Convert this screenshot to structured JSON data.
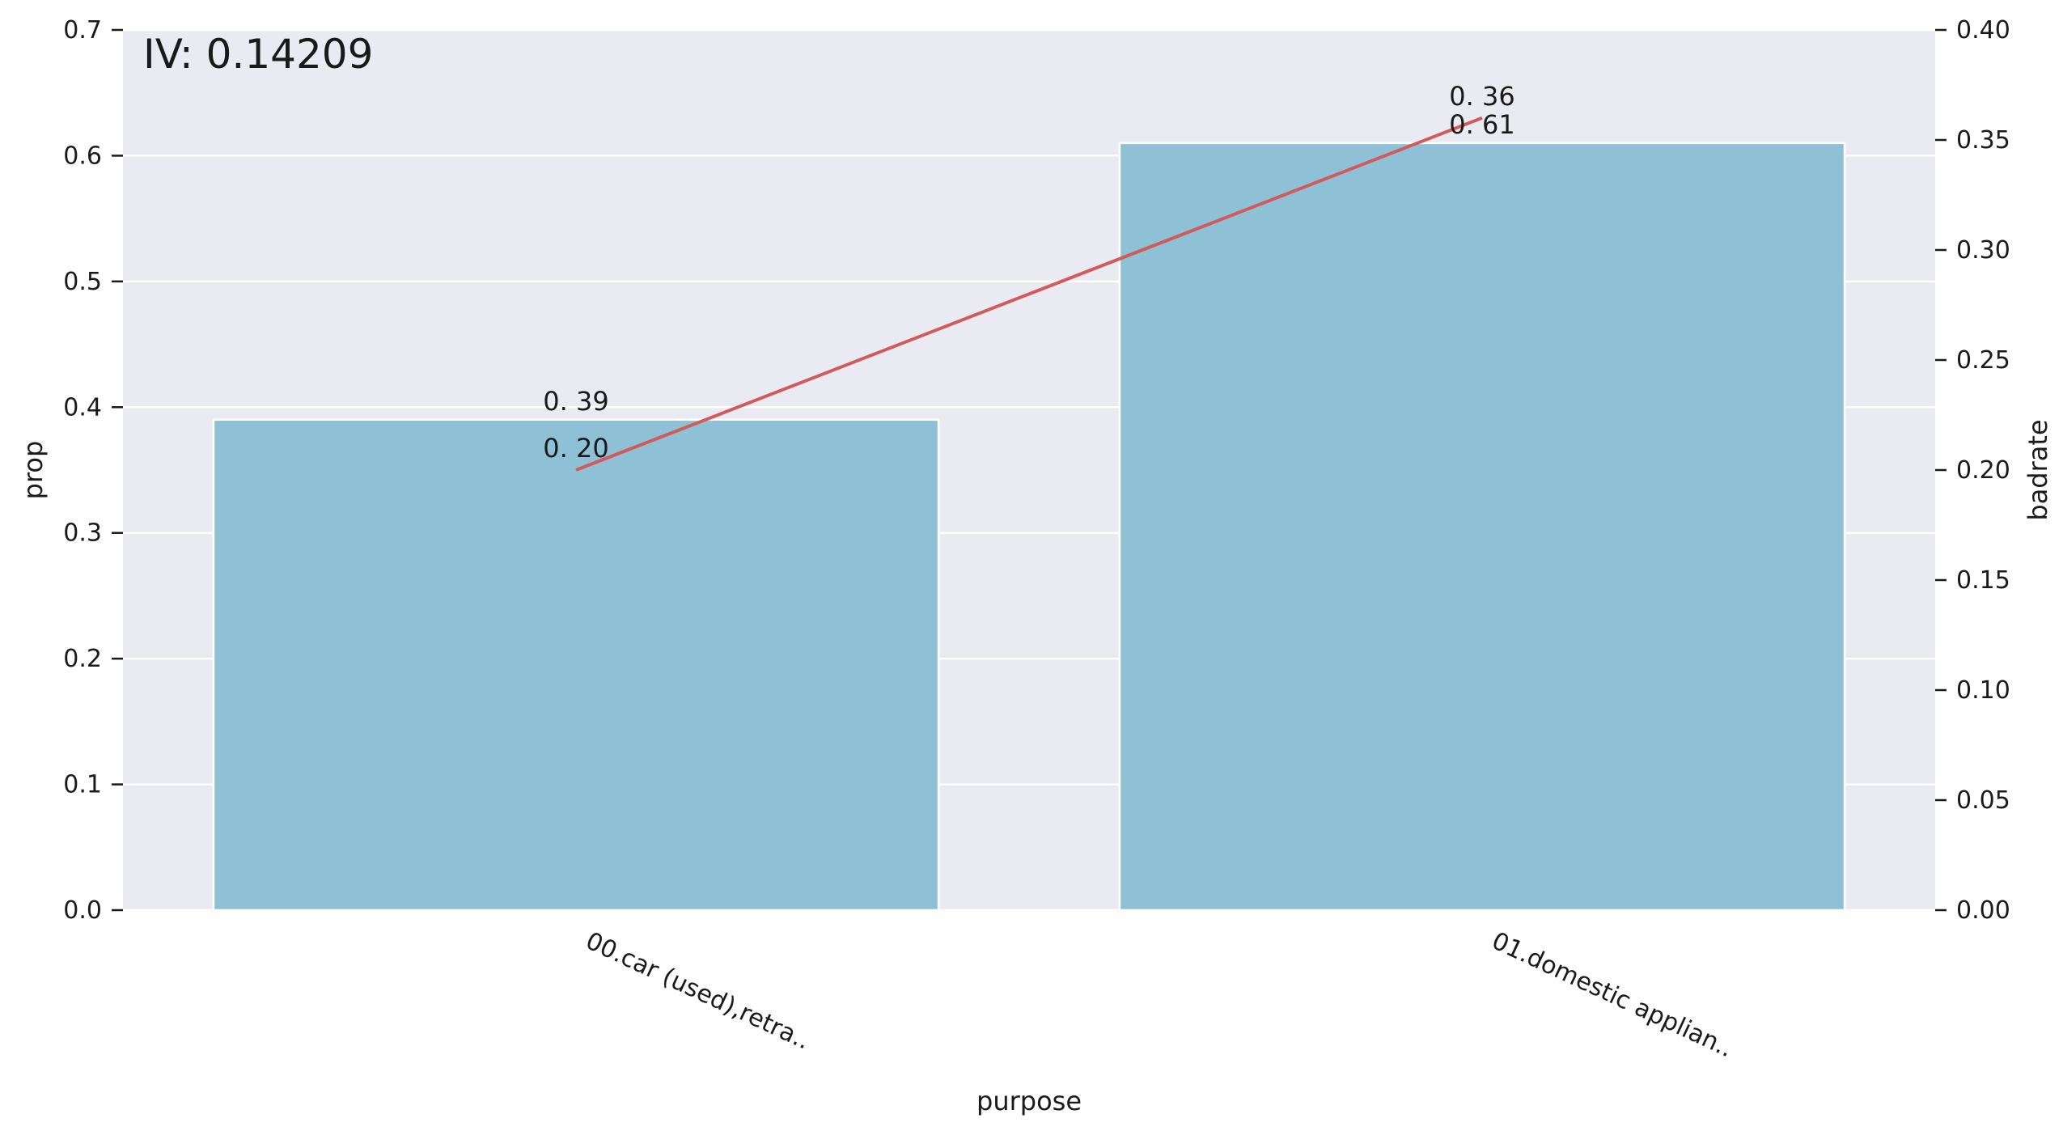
{
  "chart_data": {
    "type": "bar",
    "annotation": "IV: 0.14209",
    "xlabel": "purpose",
    "ylabel": "prop",
    "y2label": "badrate",
    "categories": [
      "00.car (used),retra..",
      "01.domestic applian.."
    ],
    "series": [
      {
        "axis": "left",
        "kind": "bar",
        "values": [
          0.39,
          0.61
        ],
        "labels": [
          "0. 39",
          "0. 61"
        ],
        "color": "#8ec1d6"
      },
      {
        "axis": "right",
        "kind": "line",
        "values": [
          0.2,
          0.36
        ],
        "labels": [
          "0. 20",
          "0. 36"
        ],
        "color": "#d15b5b"
      }
    ],
    "ylim": [
      0,
      0.7
    ],
    "yticks": [
      "0.0",
      "0.1",
      "0.2",
      "0.3",
      "0.4",
      "0.5",
      "0.6",
      "0.7"
    ],
    "y2lim": [
      0,
      0.4
    ],
    "y2ticks": [
      "0.00",
      "0.05",
      "0.10",
      "0.15",
      "0.20",
      "0.25",
      "0.30",
      "0.35",
      "0.40"
    ],
    "grid": true,
    "colors": {
      "background": "#eaeaf2",
      "grid": "#ffffff",
      "bar": "#8ec1d6",
      "line": "#d15b5b"
    }
  }
}
